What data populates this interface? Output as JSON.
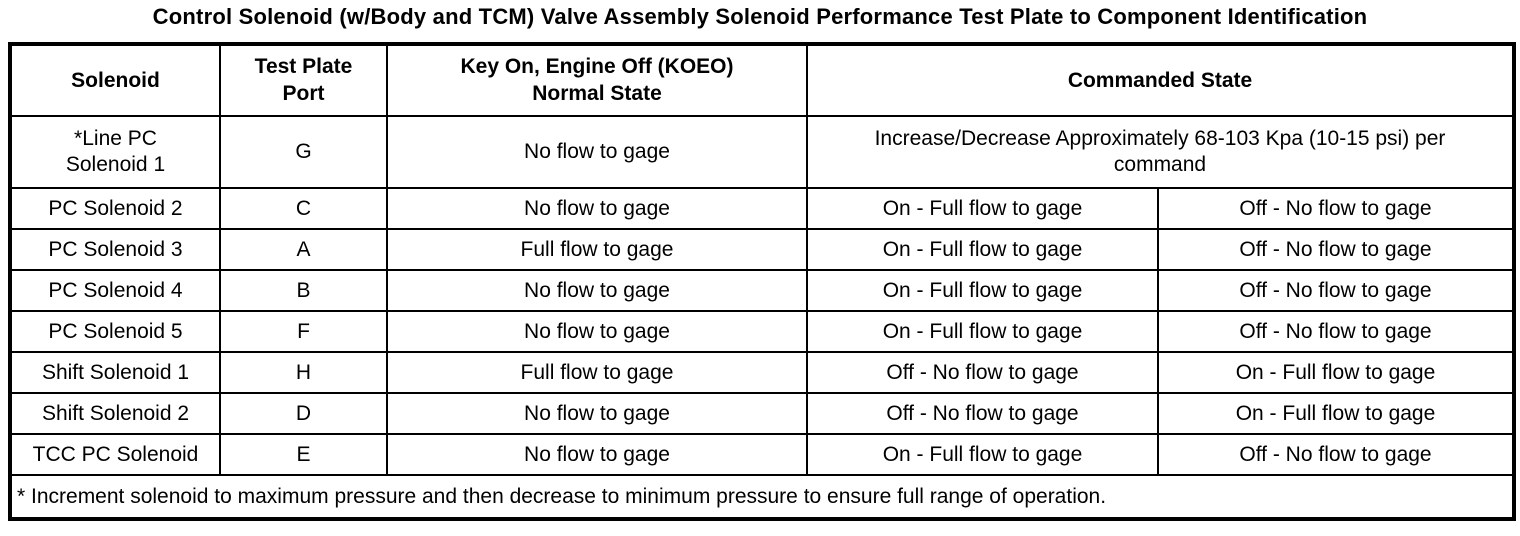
{
  "title": "Control Solenoid (w/Body and TCM) Valve Assembly Solenoid Performance Test Plate to Component Identification",
  "colors": {
    "text": "#000000",
    "background": "#ffffff",
    "border": "#000000"
  },
  "table": {
    "headers": {
      "solenoid": "Solenoid",
      "test_plate_port": "Test Plate\nPort",
      "koeo_normal_state": "Key On, Engine Off (KOEO)\nNormal State",
      "commanded_state": "Commanded State"
    },
    "line_pc_row": {
      "solenoid": "*Line PC\nSolenoid 1",
      "port": "G",
      "normal_state": "No flow to gage",
      "commanded_state": "Increase/Decrease Approximately 68-103 Kpa (10-15 psi) per\ncommand"
    },
    "rows": [
      {
        "solenoid": "PC Solenoid 2",
        "port": "C",
        "normal_state": "No flow to gage",
        "commanded_left": "On - Full flow to gage",
        "commanded_right": "Off - No flow to gage"
      },
      {
        "solenoid": "PC Solenoid 3",
        "port": "A",
        "normal_state": "Full flow to gage",
        "commanded_left": "On - Full flow to gage",
        "commanded_right": "Off - No flow to gage"
      },
      {
        "solenoid": "PC Solenoid 4",
        "port": "B",
        "normal_state": "No flow to gage",
        "commanded_left": "On - Full flow to gage",
        "commanded_right": "Off - No flow to gage"
      },
      {
        "solenoid": "PC Solenoid 5",
        "port": "F",
        "normal_state": "No flow to gage",
        "commanded_left": "On - Full flow to gage",
        "commanded_right": "Off - No flow to gage"
      },
      {
        "solenoid": "Shift Solenoid 1",
        "port": "H",
        "normal_state": "Full flow to gage",
        "commanded_left": "Off - No flow to gage",
        "commanded_right": "On - Full flow to gage"
      },
      {
        "solenoid": "Shift Solenoid 2",
        "port": "D",
        "normal_state": "No flow to gage",
        "commanded_left": "Off - No flow to gage",
        "commanded_right": "On - Full flow to gage"
      },
      {
        "solenoid": "TCC PC Solenoid",
        "port": "E",
        "normal_state": "No flow to gage",
        "commanded_left": "On - Full flow to gage",
        "commanded_right": "Off - No flow to gage"
      }
    ],
    "footnote": "* Increment solenoid to maximum pressure and then decrease to minimum pressure to ensure full range of operation."
  }
}
